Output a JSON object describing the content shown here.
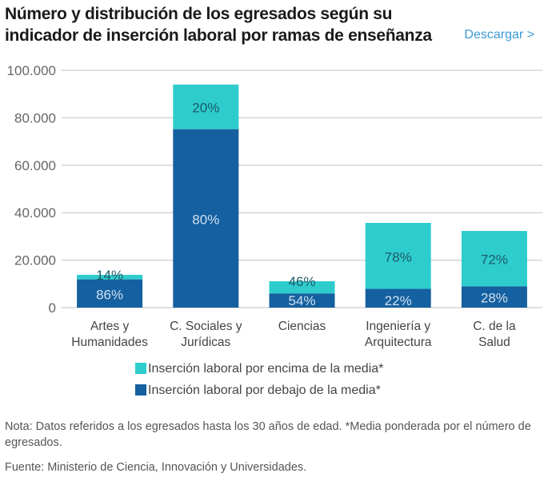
{
  "title": "Número y distribución de los egresados según su indicador de inserción laboral por ramas de enseñanza",
  "download_label": "Descargar >",
  "chart_data": {
    "type": "bar",
    "stacked": true,
    "categories": [
      [
        "Artes y",
        "Humanidades"
      ],
      [
        "C. Sociales y",
        "Jurídicas"
      ],
      [
        "Ciencias"
      ],
      [
        "Ingeniería y",
        "Arquitectura"
      ],
      [
        "C. de la",
        "Salud"
      ]
    ],
    "ylim": [
      0,
      100000
    ],
    "yticks": [
      0,
      20000,
      40000,
      60000,
      80000,
      100000
    ],
    "ytick_labels": [
      "0",
      "20.000",
      "40.000",
      "60.000",
      "80.000",
      "100.000"
    ],
    "grid": true,
    "legend_position": "bottom",
    "series": [
      {
        "name": "Inserción laboral por debajo de la media*",
        "color": "#1560a0",
        "values": [
          11900,
          75200,
          6000,
          7900,
          9000
        ],
        "labels": [
          "86%",
          "80%",
          "54%",
          "22%",
          "28%"
        ]
      },
      {
        "name": "Inserción laboral por encima de la media*",
        "color": "#2ecccc",
        "values": [
          1900,
          18800,
          5100,
          27800,
          23300
        ],
        "labels": [
          "14%",
          "20%",
          "46%",
          "78%",
          "72%"
        ]
      }
    ],
    "legend_order": [
      1,
      0
    ]
  },
  "note": "Nota: Datos referidos a los egresados hasta los 30 años de edad. *Media ponderada por el número de egresados.",
  "source": "Fuente: Ministerio de Ciencia, Innovación y Universidades."
}
